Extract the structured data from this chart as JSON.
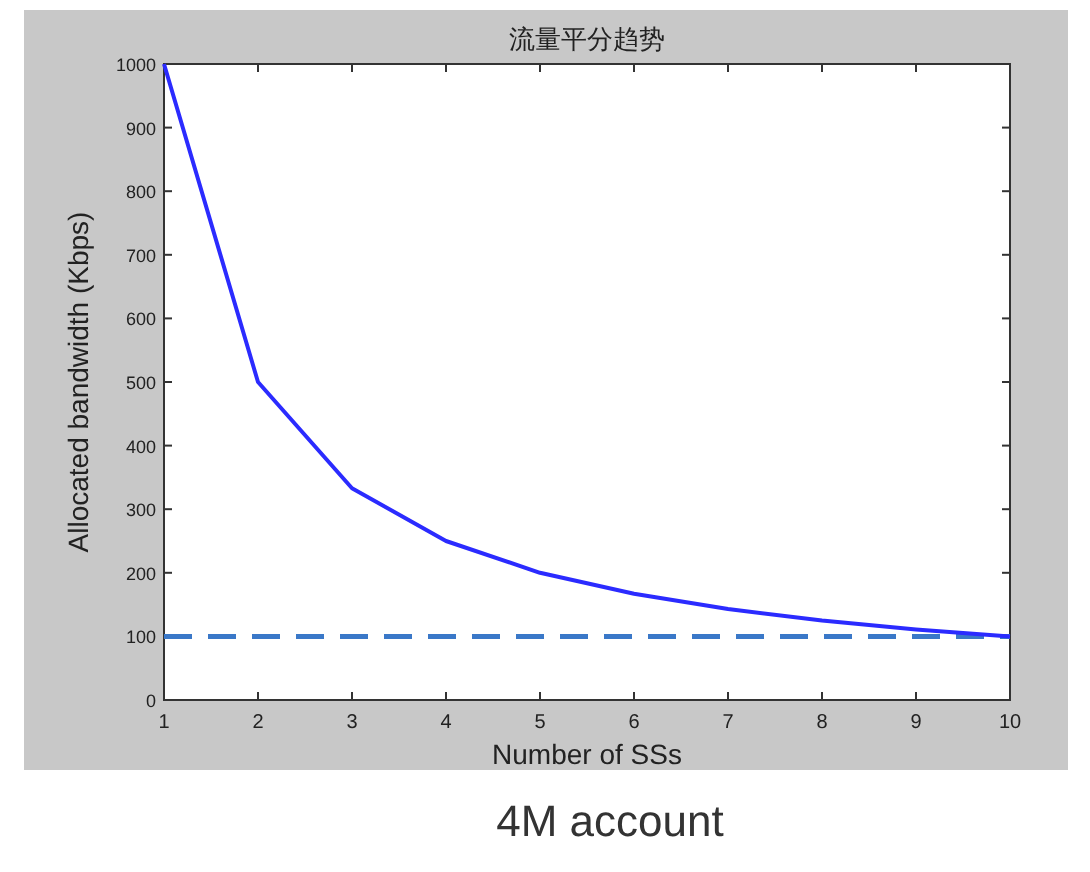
{
  "chart_data": {
    "type": "line",
    "title": "流量平分趋势",
    "xlabel": "Number of SSs",
    "ylabel": "Allocated bandwidth (Kbps)",
    "annotations": [
      "4M account"
    ],
    "x": [
      1,
      2,
      3,
      4,
      5,
      6,
      7,
      8,
      9,
      10
    ],
    "series": [
      {
        "color": "#2b2bff",
        "values": [
          1000,
          500,
          333,
          250,
          200,
          167,
          143,
          125,
          111,
          100
        ]
      }
    ],
    "ref_lines": [
      {
        "axis": "y",
        "value": 100,
        "color": "#3a78c8",
        "line_style": "dashed"
      }
    ],
    "xlim": [
      1,
      10
    ],
    "xticks": [
      1,
      2,
      3,
      4,
      5,
      6,
      7,
      8,
      9,
      10
    ],
    "ylim": [
      0,
      1000
    ],
    "yticks": [
      0,
      100,
      200,
      300,
      400,
      500,
      600,
      700,
      800,
      900,
      1000
    ],
    "marker": "none",
    "line_style": "solid"
  }
}
